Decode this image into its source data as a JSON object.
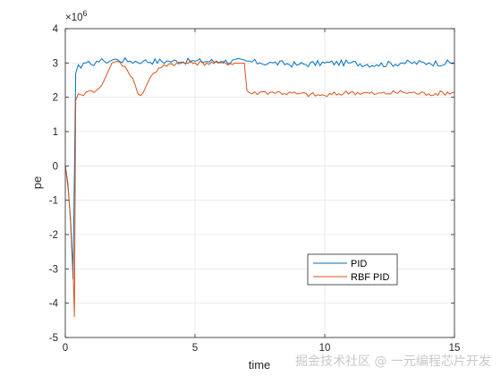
{
  "chart_data": {
    "type": "line",
    "xlabel": "time",
    "ylabel": "pe",
    "xlim": [
      0,
      15
    ],
    "ylim": [
      -5,
      4
    ],
    "xticks": [
      0,
      5,
      10,
      15
    ],
    "yticks": [
      -5,
      -4,
      -3,
      -2,
      -1,
      0,
      1,
      2,
      3,
      4
    ],
    "y_multiplier": "×10",
    "y_exponent": "6",
    "grid": true,
    "legend_position": "bottom-right",
    "series": [
      {
        "name": "PID",
        "color": "#0072BD",
        "x": [
          0,
          0.1,
          0.2,
          0.3,
          0.4,
          0.5,
          0.6,
          0.8,
          1.0,
          1.2,
          1.5,
          2.0,
          2.5,
          3.0,
          4.0,
          5.0,
          6.0,
          7.0,
          7.5,
          8.0,
          9.0,
          10.0,
          11.0,
          12.0,
          13.0,
          14.0,
          15.0
        ],
        "y": [
          0,
          -0.5,
          -1.6,
          -3.3,
          2.7,
          2.95,
          2.85,
          3.0,
          2.95,
          3.05,
          3.05,
          3.1,
          3.05,
          3.05,
          3.05,
          3.05,
          3.05,
          3.05,
          3.0,
          3.0,
          2.95,
          3.0,
          3.0,
          2.95,
          3.0,
          3.0,
          3.0
        ]
      },
      {
        "name": "RBF PID",
        "color": "#D95319",
        "x": [
          0,
          0.1,
          0.2,
          0.3,
          0.35,
          0.4,
          0.5,
          0.7,
          1.0,
          1.2,
          1.5,
          1.8,
          2.0,
          2.3,
          2.6,
          2.8,
          2.9,
          3.1,
          3.4,
          3.8,
          4.3,
          5.0,
          6.0,
          6.9,
          7.0,
          7.2,
          7.5,
          8.0,
          9.0,
          10.0,
          11.0,
          12.0,
          13.0,
          14.0,
          15.0
        ],
        "y": [
          0,
          -0.6,
          -1.5,
          -3.0,
          -4.4,
          1.9,
          2.1,
          2.05,
          2.2,
          2.2,
          2.5,
          3.0,
          3.05,
          2.9,
          2.55,
          2.1,
          2.05,
          2.3,
          2.7,
          2.95,
          3.0,
          3.0,
          3.0,
          3.0,
          2.2,
          2.1,
          2.15,
          2.15,
          2.1,
          2.05,
          2.15,
          2.1,
          2.15,
          2.1,
          2.15
        ]
      }
    ]
  },
  "watermark": {
    "text": "掘金技术社区 @ 一元编程芯片开发"
  }
}
